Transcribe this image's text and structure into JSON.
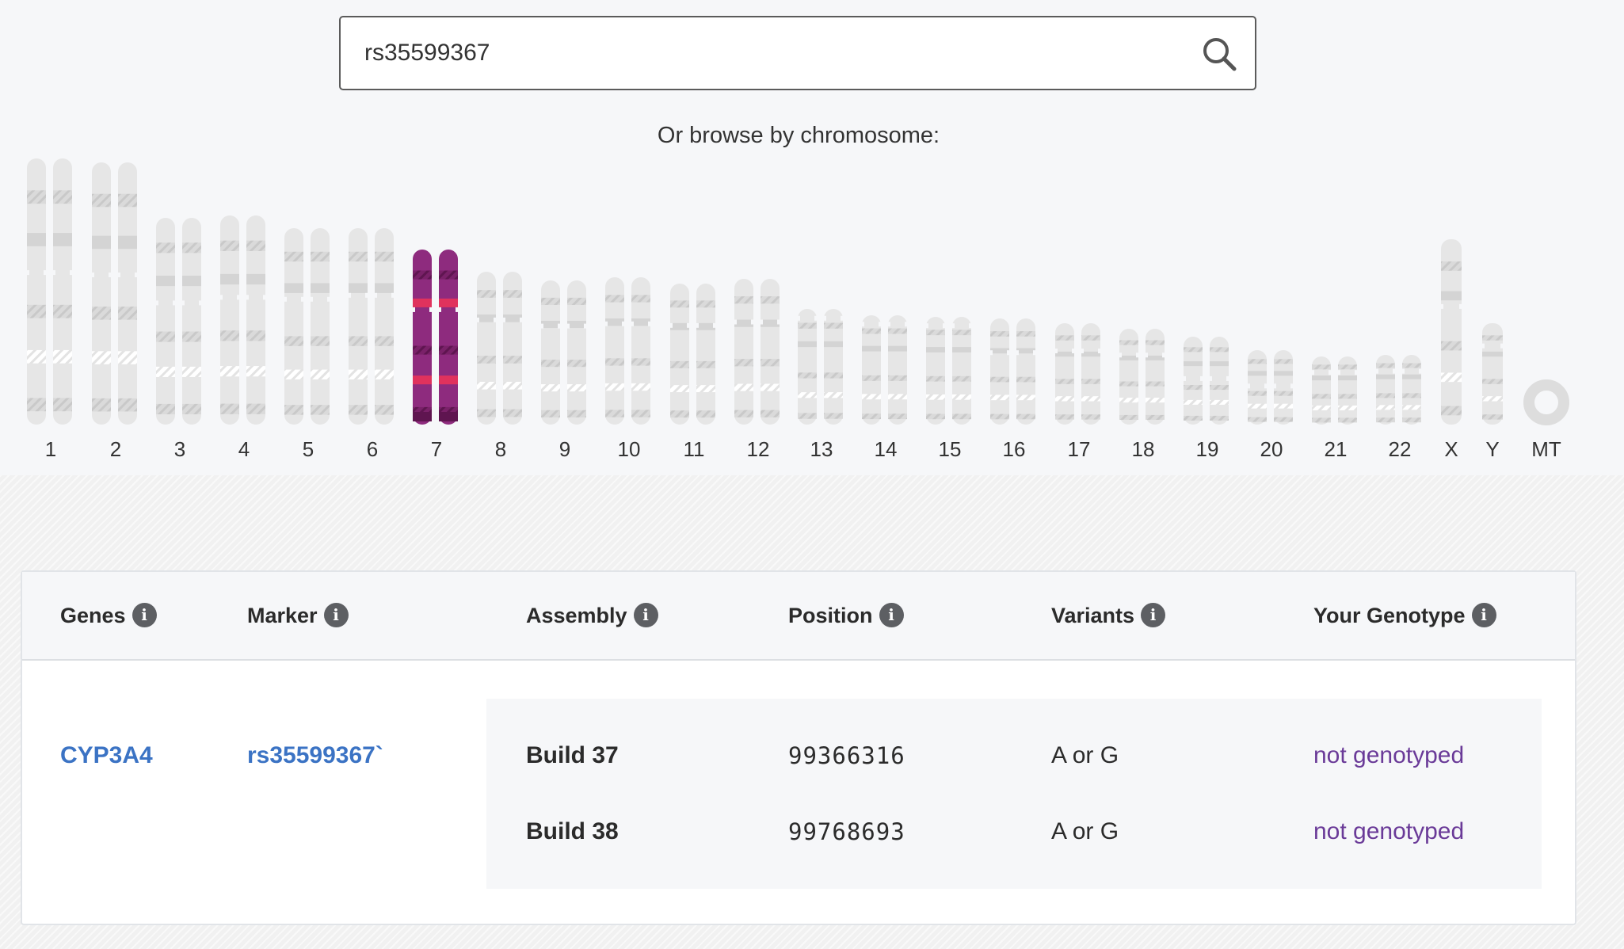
{
  "search": {
    "value": "rs35599367"
  },
  "browse": {
    "label": "Or browse by chromosome:"
  },
  "chromosomes": [
    "1",
    "2",
    "3",
    "4",
    "5",
    "6",
    "7",
    "8",
    "9",
    "10",
    "11",
    "12",
    "13",
    "14",
    "15",
    "16",
    "17",
    "18",
    "19",
    "20",
    "21",
    "22",
    "X",
    "Y",
    "MT"
  ],
  "selected_chromosome": "7",
  "colors": {
    "selected": "#8e2b7e",
    "selected_band": "#e0325d",
    "unselected": "#e6e6e6",
    "link": "#3b73c4",
    "genotype": "#6a3a98"
  },
  "icons": {
    "search": "search-icon",
    "info": "info-icon"
  },
  "table": {
    "headers": {
      "genes": "Genes",
      "marker": "Marker",
      "assembly": "Assembly",
      "position": "Position",
      "variants": "Variants",
      "genotype": "Your Genotype"
    },
    "info_glyph": "i",
    "gene": "CYP3A4",
    "marker": "rs35599367",
    "marker_suffix": "`",
    "rows": [
      {
        "assembly": "Build 37",
        "position": "99366316",
        "variants": "A or G",
        "genotype": "not genotyped"
      },
      {
        "assembly": "Build 38",
        "position": "99768693",
        "variants": "A or G",
        "genotype": "not genotyped"
      }
    ]
  }
}
